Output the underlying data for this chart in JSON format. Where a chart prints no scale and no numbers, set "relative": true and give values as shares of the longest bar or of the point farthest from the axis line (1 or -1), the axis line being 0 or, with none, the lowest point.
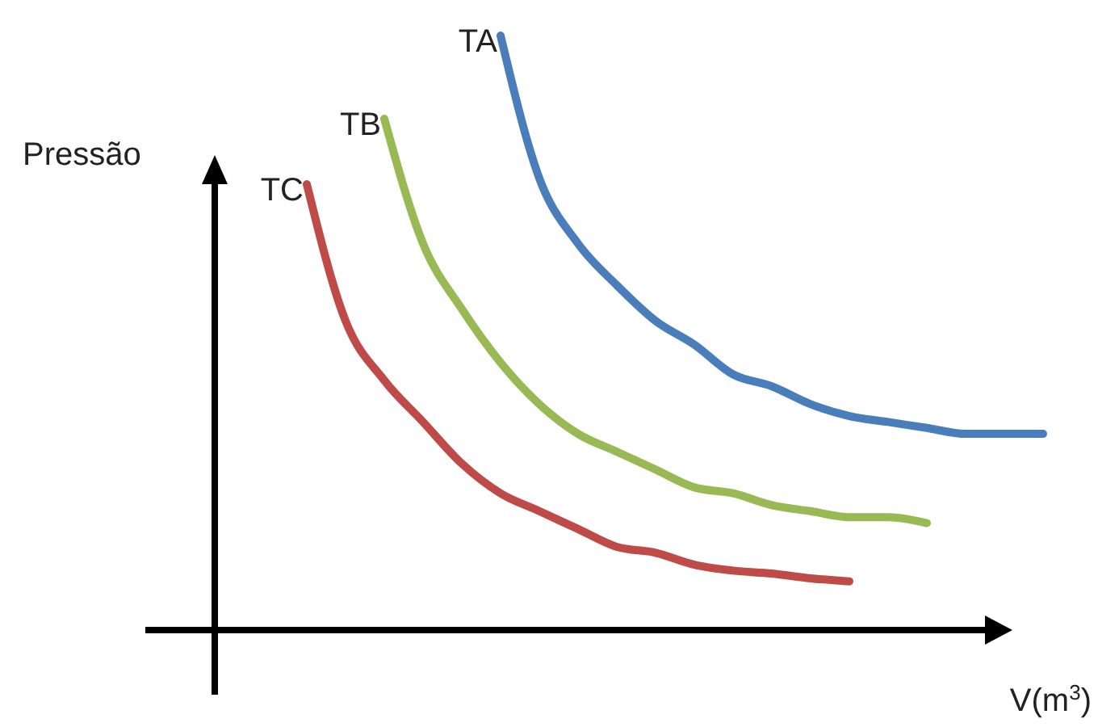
{
  "chart_data": {
    "type": "line",
    "relative": true,
    "xlabel": "V(m$^{3}$)",
    "ylabel": "Pressão",
    "categories": [
      null,
      null,
      null,
      null,
      null,
      null,
      null,
      null,
      null,
      null,
      null,
      null,
      null,
      null,
      null,
      null,
      null,
      null,
      null,
      null
    ],
    "marker": "none",
    "line_style": "solid",
    "series": [
      {
        "name": "TA",
        "color": "#4a7ebb",
        "values": [
          null,
          null,
          null,
          null,
          null,
          1,
          0.76,
          0.65,
          0.58,
          0.52,
          0.48,
          0.43,
          0.41,
          0.38,
          0.36,
          0.35,
          0.34,
          0.33,
          0.33,
          0.33
        ]
      },
      {
        "name": "TB",
        "color": "#98b954",
        "values": [
          null,
          null,
          0.86,
          0.65,
          0.54,
          0.45,
          0.38,
          0.33,
          0.3,
          0.27,
          0.24,
          0.23,
          0.21,
          0.2,
          0.19,
          0.19,
          0.18,
          null,
          null,
          null
        ]
      },
      {
        "name": "TC",
        "color": "#be4b48",
        "values": [
          0.75,
          0.52,
          0.42,
          0.35,
          0.28,
          0.23,
          0.2,
          0.17,
          0.14,
          0.13,
          0.11,
          0.1,
          0.095,
          0.087,
          0.082,
          null,
          null,
          null,
          null,
          null
        ]
      }
    ]
  }
}
